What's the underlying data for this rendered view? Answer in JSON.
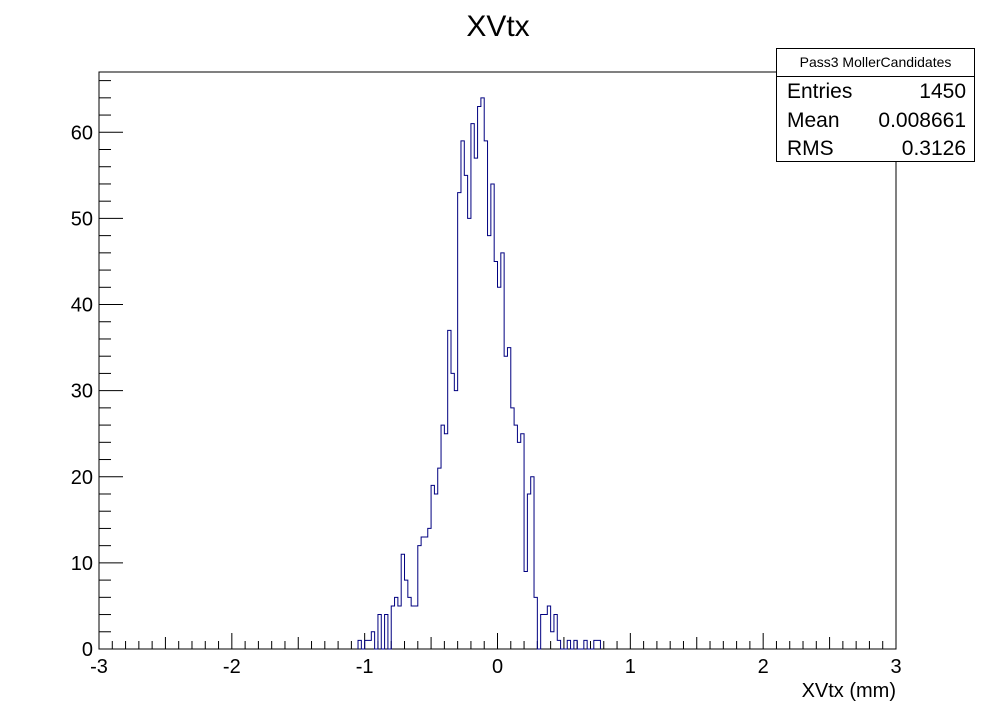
{
  "chart_data": {
    "type": "histogram",
    "title": "XVtx",
    "xlabel": "XVtx (mm)",
    "ylabel": "",
    "xlim": [
      -3,
      3
    ],
    "ylim": [
      0,
      67
    ],
    "x_ticks": [
      -3,
      -2,
      -1,
      0,
      1,
      2,
      3
    ],
    "y_ticks": [
      0,
      10,
      20,
      30,
      40,
      50,
      60
    ],
    "bin_width": 0.025,
    "bins_start": -1.05,
    "series": [
      {
        "name": "",
        "color": "#000080",
        "counts": [
          1,
          0,
          1,
          1,
          2,
          0,
          4,
          0,
          4,
          0,
          5,
          6,
          5,
          11,
          8,
          6,
          5,
          5,
          12,
          13,
          13,
          14,
          19,
          18,
          21,
          26,
          25,
          37,
          32,
          30,
          53,
          59,
          55,
          50,
          61,
          57,
          63,
          64,
          59,
          48,
          54,
          45,
          42,
          46,
          34,
          35,
          28,
          26,
          24,
          25,
          9,
          18,
          20,
          6,
          0,
          4,
          4,
          5,
          2,
          4,
          1,
          0,
          0,
          1,
          0,
          1,
          0,
          0,
          1,
          0,
          0,
          1,
          1
        ]
      }
    ],
    "stats": {
      "name": "Pass3 MollerCandidates",
      "entries_label": "Entries",
      "entries": "1450",
      "mean_label": "Mean",
      "mean": "0.008661",
      "rms_label": "RMS",
      "rms": "0.3126"
    }
  }
}
